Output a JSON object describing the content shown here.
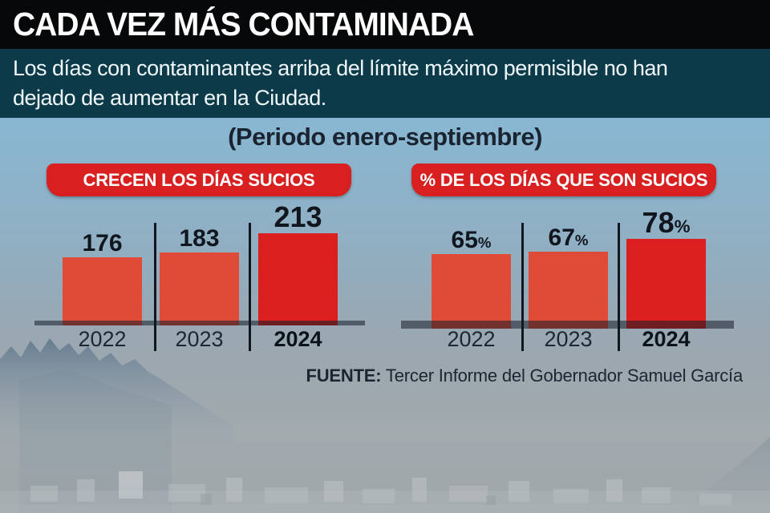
{
  "header": {
    "title": "CADA VEZ MÁS CONTAMINADA"
  },
  "intro": {
    "line1": "Los días con contaminantes arriba del límite máximo permisible no han",
    "line2": "dejado de aumentar en la Ciudad."
  },
  "period_note": "(Periodo enero-septiembre)",
  "source": {
    "label": "FUENTE:",
    "text": " Tercer Informe del Gobernador Samuel García"
  },
  "colors": {
    "title_bar_bg": "#06080a",
    "intro_bar_bg": "#0d3a48",
    "pill_red": "#d7201f",
    "bar_normal": "#e04b38",
    "bar_emphasis": "#da1f1e",
    "text_dark": "#10151e",
    "sky_top": "#84b9d7",
    "haze_bottom": "#a0a7ab"
  },
  "chart_data": [
    {
      "type": "bar",
      "title": "CRECEN LOS DÍAS SUCIOS",
      "categories": [
        "2022",
        "2023",
        "2024"
      ],
      "values": [
        176,
        183,
        213
      ],
      "unit": "",
      "emphasis_index": 2,
      "xlabel": "",
      "ylabel": "",
      "ylim": [
        0,
        230
      ],
      "grid": false,
      "legend": "none",
      "bar_color": "#e04b38",
      "bar_color_emphasis": "#da1f1e"
    },
    {
      "type": "bar",
      "title": "% DE LOS DÍAS QUE SON SUCIOS",
      "categories": [
        "2022",
        "2023",
        "2024"
      ],
      "values": [
        65,
        67,
        78
      ],
      "unit": "%",
      "emphasis_index": 2,
      "xlabel": "",
      "ylabel": "",
      "ylim": [
        0,
        100
      ],
      "grid": false,
      "legend": "none",
      "bar_color": "#e04b38",
      "bar_color_emphasis": "#da1f1e"
    }
  ]
}
